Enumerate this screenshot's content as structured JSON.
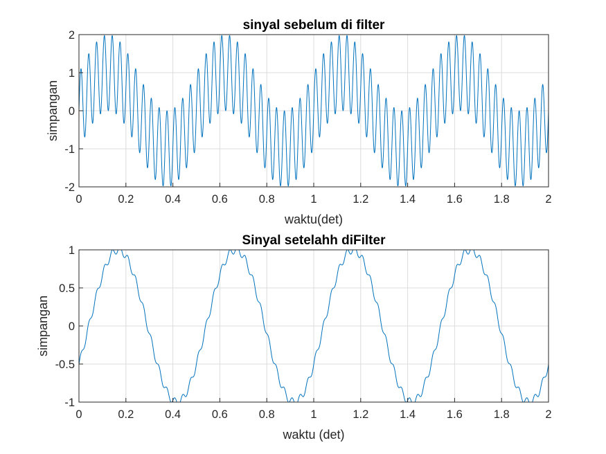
{
  "figure": {
    "background": "#ffffff",
    "line_color": "#0072BD",
    "grid_color": "#dcdcdc",
    "axis_color": "#262626"
  },
  "chart_data": [
    {
      "type": "line",
      "title": "sinyal sebelum di filter",
      "xlabel": "waktu(det)",
      "ylabel": "simpangan",
      "xlim": [
        0,
        2
      ],
      "ylim": [
        -2,
        2
      ],
      "xticks": [
        "0",
        "0.2",
        "0.4",
        "0.6",
        "0.8",
        "1",
        "1.2",
        "1.4",
        "1.6",
        "1.8",
        "2"
      ],
      "yticks": [
        "-2",
        "-1",
        "0",
        "1",
        "2"
      ],
      "grid": true,
      "legend": "none",
      "series": [
        {
          "function": "sin(2*pi*2*t) + sin(2*pi*30*t)",
          "t_start": 0,
          "t_end": 2,
          "samples": 2001
        }
      ]
    },
    {
      "type": "line",
      "title": "Sinyal setelahh diFilter",
      "xlabel": "waktu (det)",
      "ylabel": "simpangan",
      "xlim": [
        0,
        2
      ],
      "ylim": [
        -1,
        1
      ],
      "xticks": [
        "0",
        "0.2",
        "0.4",
        "0.6",
        "0.8",
        "1",
        "1.2",
        "1.4",
        "1.6",
        "1.8",
        "2"
      ],
      "yticks": [
        "-1",
        "-0.5",
        "0",
        "0.5",
        "1"
      ],
      "grid": true,
      "legend": "none",
      "series": [
        {
          "function": "sin(2*pi*2*(t-0.042)) + 0.05*sin(2*pi*30*t)",
          "t_start": 0,
          "t_end": 2,
          "samples": 2001
        }
      ]
    }
  ]
}
